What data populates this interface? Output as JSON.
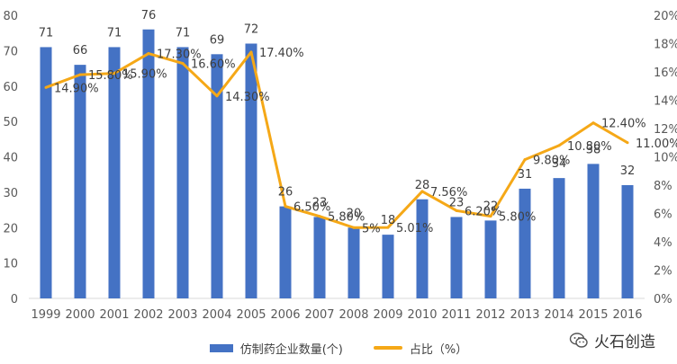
{
  "chart_data": {
    "type": "bar",
    "categories": [
      "1999",
      "2000",
      "2001",
      "2002",
      "2003",
      "2004",
      "2005",
      "2006",
      "2007",
      "2008",
      "2009",
      "2010",
      "2011",
      "2012",
      "2013",
      "2014",
      "2015",
      "2016"
    ],
    "series": [
      {
        "name": "仿制药企业数量(个)",
        "type": "bar",
        "axis": "left",
        "values": [
          71,
          66,
          71,
          76,
          71,
          69,
          72,
          26,
          23,
          20,
          18,
          28,
          23,
          22,
          31,
          34,
          38,
          32
        ],
        "labels": [
          "71",
          "66",
          "71",
          "76",
          "71",
          "69",
          "72",
          "26",
          "23",
          "20",
          "18",
          "28",
          "23",
          "22",
          "31",
          "34",
          "38",
          "32"
        ],
        "color": "#4472C4"
      },
      {
        "name": "占比（%）",
        "type": "line",
        "axis": "right",
        "values": [
          14.9,
          15.8,
          15.9,
          17.3,
          16.6,
          14.3,
          17.4,
          6.5,
          5.8,
          5,
          5.01,
          7.56,
          6.2,
          5.8,
          9.8,
          10.8,
          12.4,
          11.0
        ],
        "labels": [
          "14.90%",
          "15.80%",
          "15.90%",
          "17.30%",
          "16.60%",
          "14.30%",
          "17.40%",
          "6.50%",
          "5.80%",
          "5%",
          "5.01%",
          "7.56%",
          "6.20%",
          "5.80%",
          "9.80%",
          "10.80%",
          "12.40%",
          "11.00%"
        ],
        "color": "#F5A817"
      }
    ],
    "y_left": {
      "min": 0,
      "max": 80,
      "ticks": [
        "0",
        "10",
        "20",
        "30",
        "40",
        "50",
        "60",
        "70",
        "80"
      ]
    },
    "y_right": {
      "min": 0,
      "max": 20,
      "ticks": [
        "0%",
        "2%",
        "4%",
        "6%",
        "8%",
        "10%",
        "12%",
        "14%",
        "16%",
        "18%",
        "20%"
      ]
    },
    "grid": false,
    "legend_position": "bottom"
  },
  "legend": {
    "bar_label": "仿制药企业数量(个)",
    "line_label": "占比（%）"
  },
  "watermark": {
    "text": "火石创造"
  }
}
